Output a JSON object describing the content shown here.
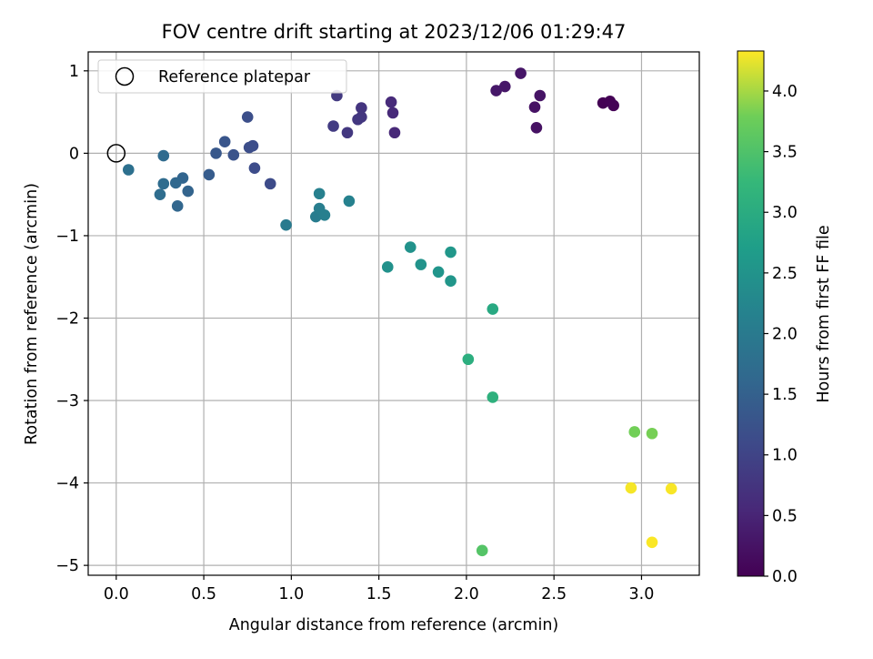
{
  "chart_data": {
    "type": "scatter",
    "title": "FOV centre drift starting at 2023/12/06 01:29:47",
    "xlabel": "Angular distance from reference (arcmin)",
    "ylabel": "Rotation from reference (arcmin)",
    "xlim": [
      -0.16,
      3.33
    ],
    "ylim": [
      -5.12,
      1.23
    ],
    "xticks": [
      0.0,
      0.5,
      1.0,
      1.5,
      2.0,
      2.5,
      3.0
    ],
    "xtick_labels": [
      "0.0",
      "0.5",
      "1.0",
      "1.5",
      "2.0",
      "2.5",
      "3.0"
    ],
    "yticks": [
      1,
      0,
      -1,
      -2,
      -3,
      -4,
      -5
    ],
    "ytick_labels": [
      "1",
      "0",
      "−1",
      "−2",
      "−3",
      "−4",
      "−5"
    ],
    "grid": true,
    "legend": {
      "position": "top-left",
      "entries": [
        "Reference platepar"
      ]
    },
    "reference_point": {
      "x": 0.0,
      "y": 0.0
    },
    "colorbar": {
      "label": "Hours from first FF file",
      "colormap": "viridis",
      "range": [
        0.0,
        4.33
      ],
      "ticks": [
        0.0,
        0.5,
        1.0,
        1.5,
        2.0,
        2.5,
        3.0,
        3.5,
        4.0
      ],
      "tick_labels": [
        "0.0",
        "0.5",
        "1.0",
        "1.5",
        "2.0",
        "2.5",
        "3.0",
        "3.5",
        "4.0"
      ]
    },
    "points": [
      {
        "x": 2.78,
        "y": 0.61,
        "c": 0.0
      },
      {
        "x": 2.82,
        "y": 0.63,
        "c": 0.02
      },
      {
        "x": 2.84,
        "y": 0.58,
        "c": 0.03
      },
      {
        "x": 2.4,
        "y": 0.31,
        "c": 0.22
      },
      {
        "x": 2.39,
        "y": 0.56,
        "c": 0.24
      },
      {
        "x": 2.42,
        "y": 0.7,
        "c": 0.26
      },
      {
        "x": 2.31,
        "y": 0.97,
        "c": 0.28
      },
      {
        "x": 2.22,
        "y": 0.81,
        "c": 0.3
      },
      {
        "x": 2.17,
        "y": 0.76,
        "c": 0.32
      },
      {
        "x": 1.59,
        "y": 0.25,
        "c": 0.55
      },
      {
        "x": 1.58,
        "y": 0.49,
        "c": 0.57
      },
      {
        "x": 1.57,
        "y": 0.62,
        "c": 0.59
      },
      {
        "x": 1.4,
        "y": 0.55,
        "c": 0.75
      },
      {
        "x": 1.4,
        "y": 0.44,
        "c": 0.77
      },
      {
        "x": 1.38,
        "y": 0.41,
        "c": 0.79
      },
      {
        "x": 1.32,
        "y": 0.25,
        "c": 0.81
      },
      {
        "x": 1.26,
        "y": 0.7,
        "c": 0.83
      },
      {
        "x": 1.24,
        "y": 0.33,
        "c": 0.85
      },
      {
        "x": 0.88,
        "y": -0.37,
        "c": 1.12
      },
      {
        "x": 0.79,
        "y": -0.18,
        "c": 1.14
      },
      {
        "x": 0.78,
        "y": 0.09,
        "c": 1.16
      },
      {
        "x": 0.76,
        "y": 0.07,
        "c": 1.17
      },
      {
        "x": 0.75,
        "y": 0.44,
        "c": 1.18
      },
      {
        "x": 0.67,
        "y": -0.02,
        "c": 1.25
      },
      {
        "x": 0.62,
        "y": 0.14,
        "c": 1.3
      },
      {
        "x": 0.57,
        "y": 0.0,
        "c": 1.35
      },
      {
        "x": 0.53,
        "y": -0.26,
        "c": 1.42
      },
      {
        "x": 0.41,
        "y": -0.46,
        "c": 1.55
      },
      {
        "x": 0.38,
        "y": -0.3,
        "c": 1.58
      },
      {
        "x": 0.35,
        "y": -0.64,
        "c": 1.6
      },
      {
        "x": 0.34,
        "y": -0.36,
        "c": 1.62
      },
      {
        "x": 0.27,
        "y": -0.03,
        "c": 1.68
      },
      {
        "x": 0.27,
        "y": -0.37,
        "c": 1.7
      },
      {
        "x": 0.25,
        "y": -0.5,
        "c": 1.72
      },
      {
        "x": 0.07,
        "y": -0.2,
        "c": 1.8
      },
      {
        "x": 0.97,
        "y": -0.87,
        "c": 2.0
      },
      {
        "x": 1.14,
        "y": -0.77,
        "c": 2.05
      },
      {
        "x": 1.16,
        "y": -0.67,
        "c": 2.08
      },
      {
        "x": 1.19,
        "y": -0.75,
        "c": 2.1
      },
      {
        "x": 1.16,
        "y": -0.49,
        "c": 2.12
      },
      {
        "x": 1.33,
        "y": -0.58,
        "c": 2.15
      },
      {
        "x": 1.55,
        "y": -1.38,
        "c": 2.45
      },
      {
        "x": 1.68,
        "y": -1.14,
        "c": 2.48
      },
      {
        "x": 1.74,
        "y": -1.35,
        "c": 2.5
      },
      {
        "x": 1.84,
        "y": -1.44,
        "c": 2.53
      },
      {
        "x": 1.91,
        "y": -1.55,
        "c": 2.55
      },
      {
        "x": 1.91,
        "y": -1.2,
        "c": 2.57
      },
      {
        "x": 2.15,
        "y": -1.89,
        "c": 2.95
      },
      {
        "x": 2.01,
        "y": -2.5,
        "c": 3.05
      },
      {
        "x": 2.15,
        "y": -2.96,
        "c": 3.1
      },
      {
        "x": 2.09,
        "y": -4.82,
        "c": 3.55
      },
      {
        "x": 2.96,
        "y": -3.38,
        "c": 3.8
      },
      {
        "x": 3.06,
        "y": -3.4,
        "c": 3.82
      },
      {
        "x": 2.94,
        "y": -4.06,
        "c": 4.3
      },
      {
        "x": 3.17,
        "y": -4.07,
        "c": 4.31
      },
      {
        "x": 3.06,
        "y": -4.72,
        "c": 4.32
      }
    ]
  }
}
